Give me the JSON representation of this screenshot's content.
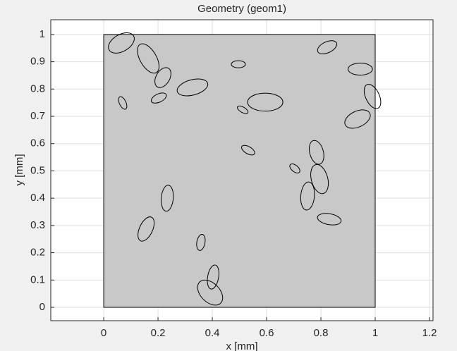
{
  "chart_data": {
    "type": "geometry",
    "title": "Geometry (geom1)",
    "x_label": "x [mm]",
    "y_label": "y [mm]",
    "xlim": [
      -0.195,
      1.213
    ],
    "ylim": [
      -0.049,
      1.054
    ],
    "xticks": [
      0,
      0.2,
      0.4,
      0.6,
      0.8,
      1,
      1.2
    ],
    "yticks": [
      0,
      0.1,
      0.2,
      0.3,
      0.4,
      0.5,
      0.6,
      0.7,
      0.8,
      0.9,
      1
    ],
    "grid": true,
    "domain_color": "#c8c8c8",
    "domain": {
      "x": [
        0,
        1
      ],
      "y": [
        0,
        1
      ]
    },
    "ellipses": [
      {
        "cx": 0.065,
        "cy": 0.969,
        "rx": 0.052,
        "ry": 0.031,
        "angle": 30
      },
      {
        "cx": 0.164,
        "cy": 0.912,
        "rx": 0.06,
        "ry": 0.03,
        "angle": -60
      },
      {
        "cx": 0.218,
        "cy": 0.842,
        "rx": 0.04,
        "ry": 0.025,
        "angle": 60
      },
      {
        "cx": 0.203,
        "cy": 0.767,
        "rx": 0.03,
        "ry": 0.015,
        "angle": 25
      },
      {
        "cx": 0.07,
        "cy": 0.749,
        "rx": 0.025,
        "ry": 0.012,
        "angle": -65
      },
      {
        "cx": 0.327,
        "cy": 0.806,
        "rx": 0.058,
        "ry": 0.028,
        "angle": 15
      },
      {
        "cx": 0.496,
        "cy": 0.891,
        "rx": 0.026,
        "ry": 0.013,
        "angle": 0
      },
      {
        "cx": 0.595,
        "cy": 0.752,
        "rx": 0.065,
        "ry": 0.033,
        "angle": 0
      },
      {
        "cx": 0.512,
        "cy": 0.724,
        "rx": 0.022,
        "ry": 0.01,
        "angle": -30
      },
      {
        "cx": 0.532,
        "cy": 0.576,
        "rx": 0.027,
        "ry": 0.013,
        "angle": -30
      },
      {
        "cx": 0.823,
        "cy": 0.953,
        "rx": 0.038,
        "ry": 0.02,
        "angle": 25
      },
      {
        "cx": 0.945,
        "cy": 0.873,
        "rx": 0.045,
        "ry": 0.022,
        "angle": 0
      },
      {
        "cx": 0.99,
        "cy": 0.773,
        "rx": 0.048,
        "ry": 0.025,
        "angle": -65
      },
      {
        "cx": 0.935,
        "cy": 0.69,
        "rx": 0.05,
        "ry": 0.029,
        "angle": 25
      },
      {
        "cx": 0.784,
        "cy": 0.568,
        "rx": 0.045,
        "ry": 0.025,
        "angle": -75
      },
      {
        "cx": 0.704,
        "cy": 0.509,
        "rx": 0.022,
        "ry": 0.012,
        "angle": -40
      },
      {
        "cx": 0.795,
        "cy": 0.47,
        "rx": 0.055,
        "ry": 0.03,
        "angle": -75
      },
      {
        "cx": 0.751,
        "cy": 0.408,
        "rx": 0.052,
        "ry": 0.025,
        "angle": 85
      },
      {
        "cx": 0.831,
        "cy": 0.323,
        "rx": 0.044,
        "ry": 0.02,
        "angle": -10
      },
      {
        "cx": 0.234,
        "cy": 0.4,
        "rx": 0.048,
        "ry": 0.022,
        "angle": 85
      },
      {
        "cx": 0.156,
        "cy": 0.287,
        "rx": 0.048,
        "ry": 0.024,
        "angle": 65
      },
      {
        "cx": 0.358,
        "cy": 0.238,
        "rx": 0.03,
        "ry": 0.015,
        "angle": 80
      },
      {
        "cx": 0.403,
        "cy": 0.111,
        "rx": 0.045,
        "ry": 0.02,
        "angle": 80
      },
      {
        "cx": 0.392,
        "cy": 0.054,
        "rx": 0.055,
        "ry": 0.035,
        "angle": -45
      }
    ]
  }
}
